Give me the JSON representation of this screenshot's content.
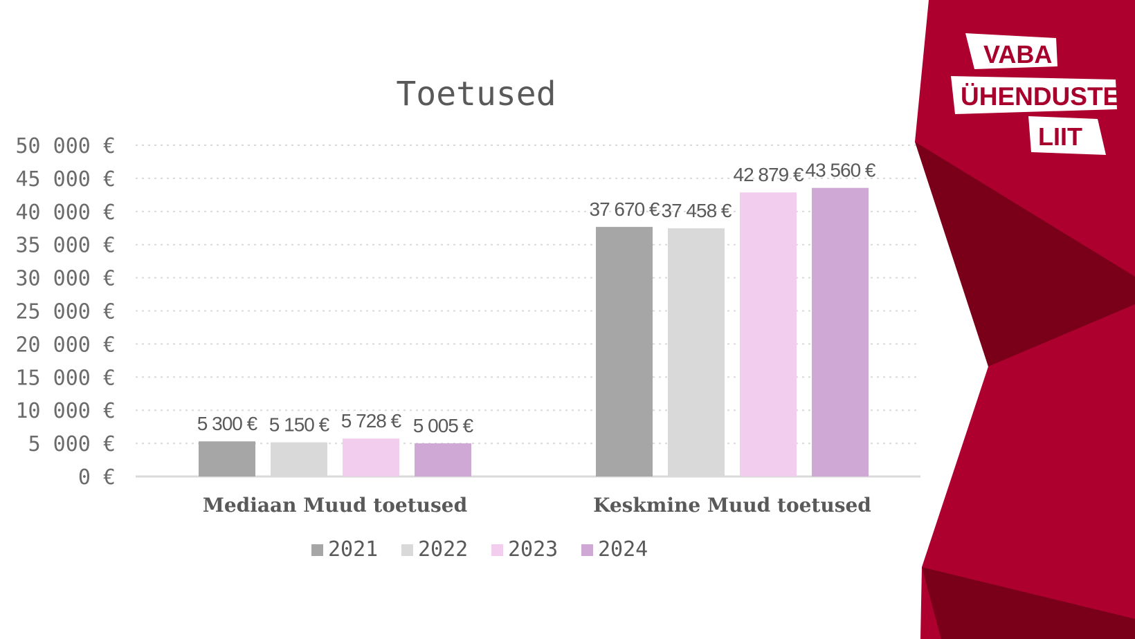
{
  "brand": {
    "logo_lines": [
      "VABA",
      "ÜHENDUSTE",
      "LIIT"
    ],
    "colors": {
      "primary": "#ad002e",
      "dark": "#7a0019",
      "text_on_logo": "#ad002e"
    }
  },
  "chart_data": {
    "type": "bar",
    "title": "Toetused",
    "categories": [
      "Mediaan Muud toetused",
      "Keskmine Muud toetused"
    ],
    "series": [
      {
        "name": "2021",
        "color": "#a6a6a6",
        "values": [
          5300,
          37670
        ],
        "labels": [
          "5 300 €",
          "37 670 €"
        ]
      },
      {
        "name": "2022",
        "color": "#d9d9d9",
        "values": [
          5150,
          37458
        ],
        "labels": [
          "5 150 €",
          "37 458 €"
        ]
      },
      {
        "name": "2023",
        "color": "#f2cdee",
        "values": [
          5728,
          42879
        ],
        "labels": [
          "5 728 €",
          "42 879 €"
        ]
      },
      {
        "name": "2024",
        "color": "#cfa8d6",
        "values": [
          5005,
          43560
        ],
        "labels": [
          "5 005 €",
          "43 560 €"
        ]
      }
    ],
    "ylim": [
      0,
      50000
    ],
    "y_ticks": [
      0,
      5000,
      10000,
      15000,
      20000,
      25000,
      30000,
      35000,
      40000,
      45000,
      50000
    ],
    "y_tick_labels": [
      "0 €",
      "5 000 €",
      "10 000 €",
      "15 000 €",
      "20 000 €",
      "25 000 €",
      "30 000 €",
      "35 000 €",
      "40 000 €",
      "45 000 €",
      "50 000 €"
    ],
    "grid": true,
    "legend": "bottom"
  }
}
